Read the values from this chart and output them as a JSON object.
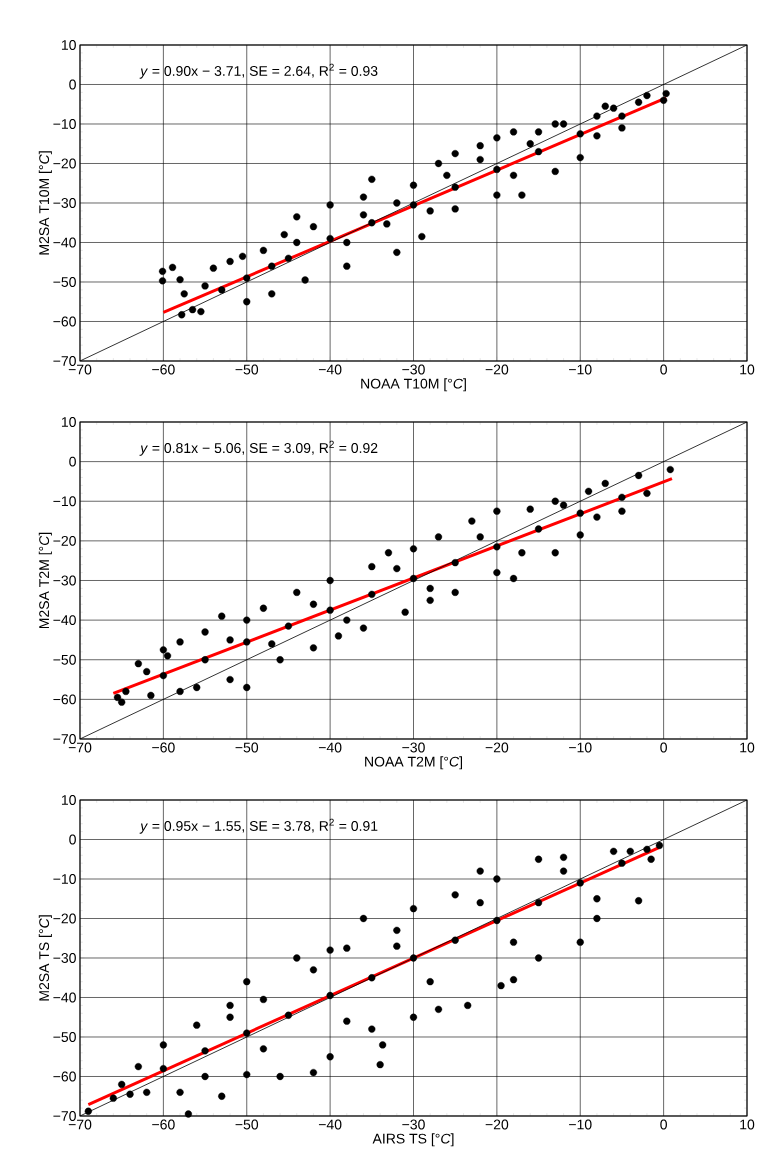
{
  "chart_data": [
    {
      "type": "scatter",
      "xlabel": "NOAA T10M [°*C*]",
      "ylabel": "M2SA T10M [°*C*]",
      "annotations": [
        "*y* = 0.90x − 3.71, SE =  2.64, R$^{2}$ =  0.93"
      ],
      "grid": true,
      "xlim": [
        -70,
        10
      ],
      "ylim": [
        -70,
        10
      ],
      "xticks": [
        {
          "value": -70,
          "label": "−70"
        },
        {
          "value": -60,
          "label": "−60"
        },
        {
          "value": -50,
          "label": "−50"
        },
        {
          "value": -40,
          "label": "−40"
        },
        {
          "value": -30,
          "label": "−30"
        },
        {
          "value": -20,
          "label": "−20"
        },
        {
          "value": -10,
          "label": "−10"
        },
        0,
        10
      ],
      "yticks": [
        {
          "value": -70,
          "label": "−70"
        },
        {
          "value": -60,
          "label": "−60"
        },
        {
          "value": -50,
          "label": "−50"
        },
        {
          "value": -40,
          "label": "−40"
        },
        {
          "value": -30,
          "label": "−30"
        },
        {
          "value": -20,
          "label": "−20"
        },
        {
          "value": -10,
          "label": "−10"
        },
        0,
        10
      ],
      "series": [
        {
          "marker": "circle",
          "color": "#000000",
          "x": [
            -60.1,
            -60.1,
            -58.9,
            -58,
            -57.5,
            -57.8,
            -56.5,
            -55.5,
            -55,
            -54,
            -53,
            -52,
            -50,
            -50.5,
            -48,
            -47,
            -45.5,
            -44,
            -43,
            -40,
            -38,
            -36,
            -35,
            -33.2,
            -32,
            -30,
            -29,
            -27,
            -25,
            -25,
            -22,
            -20,
            -20,
            -18,
            -17,
            -15,
            -13,
            -13,
            -10,
            -8,
            -7,
            -5,
            -3,
            -2,
            0.3,
            0,
            -50,
            -45,
            -40,
            -35,
            -30,
            -25,
            -20,
            -15,
            -10,
            -5,
            -42,
            -38,
            -32,
            -28,
            -22,
            -18,
            -12,
            -8,
            -47,
            -44,
            -36,
            -26,
            -16,
            -6
          ],
          "values": [
            -47.3,
            -49.7,
            -46.3,
            -49.4,
            -53,
            -58.3,
            -57,
            -57.5,
            -51,
            -46.5,
            -52,
            -44.8,
            -55,
            -43.5,
            -42,
            -53,
            -38,
            -33.5,
            -49.5,
            -30.5,
            -46,
            -28.5,
            -24,
            -35.3,
            -42.5,
            -25.5,
            -38.5,
            -20,
            -17.5,
            -31.5,
            -15.5,
            -13.5,
            -28,
            -12,
            -28,
            -12,
            -10,
            -22,
            -18.5,
            -8,
            -5.5,
            -11,
            -4.5,
            -2.8,
            -2.3,
            -4,
            -49,
            -44,
            -39,
            -35,
            -30.5,
            -26,
            -21.5,
            -17,
            -12.5,
            -8,
            -36,
            -40,
            -30,
            -32,
            -19,
            -23,
            -10,
            -13,
            -46,
            -40,
            -33,
            -23,
            -15,
            -6
          ]
        },
        {
          "type": "line",
          "color": "#ff0000",
          "x": [
            -60,
            0.3
          ],
          "values": [
            -57.7,
            -3.4
          ]
        },
        {
          "type": "line",
          "color": "#000000",
          "x": [
            -70,
            10
          ],
          "values": [
            -70,
            10
          ]
        }
      ]
    },
    {
      "type": "scatter",
      "xlabel": "NOAA T2M [°*C*]",
      "ylabel": "M2SA T2M [°*C*]",
      "annotations": [
        "*y* = 0.81x − 5.06, SE =  3.09, R$^{2}$ =  0.92"
      ],
      "grid": true,
      "xlim": [
        -70,
        10
      ],
      "ylim": [
        -70,
        10
      ],
      "xticks": [
        {
          "value": -70,
          "label": "−70"
        },
        {
          "value": -60,
          "label": "−60"
        },
        {
          "value": -50,
          "label": "−50"
        },
        {
          "value": -40,
          "label": "−40"
        },
        {
          "value": -30,
          "label": "−30"
        },
        {
          "value": -20,
          "label": "−20"
        },
        {
          "value": -10,
          "label": "−10"
        },
        0,
        10
      ],
      "yticks": [
        {
          "value": -70,
          "label": "−70"
        },
        {
          "value": -60,
          "label": "−60"
        },
        {
          "value": -50,
          "label": "−50"
        },
        {
          "value": -40,
          "label": "−40"
        },
        {
          "value": -30,
          "label": "−30"
        },
        {
          "value": -20,
          "label": "−20"
        },
        {
          "value": -10,
          "label": "−10"
        },
        0,
        10
      ],
      "series": [
        {
          "marker": "circle",
          "color": "#000000",
          "x": [
            -65.5,
            -65,
            -64.5,
            -63,
            -62,
            -61.5,
            -60,
            -59.5,
            -58,
            -58,
            -56,
            -55,
            -53,
            -52,
            -50,
            -50,
            -48,
            -46,
            -44,
            -42,
            -40,
            -39,
            -36,
            -35,
            -33,
            -31,
            -30,
            -28,
            -27,
            -25,
            -23,
            -20,
            -20,
            -18,
            -16,
            -13,
            -13,
            -10,
            -9,
            -7,
            -5,
            -3,
            -2,
            0.8,
            -60,
            -55,
            -50,
            -45,
            -40,
            -35,
            -30,
            -25,
            -20,
            -15,
            -10,
            -5,
            -52,
            -47,
            -42,
            -38,
            -32,
            -28,
            -22,
            -17,
            -12,
            -8
          ],
          "values": [
            -59.5,
            -60.7,
            -58,
            -51,
            -53,
            -59,
            -47.5,
            -49,
            -45.5,
            -58,
            -57,
            -43,
            -39,
            -55,
            -57,
            -40,
            -37,
            -50,
            -33,
            -47,
            -30,
            -44,
            -42,
            -26.5,
            -23,
            -38,
            -22,
            -35,
            -19,
            -33,
            -15,
            -12.5,
            -28,
            -29.5,
            -12,
            -10,
            -23,
            -18.5,
            -7.5,
            -5.5,
            -12.5,
            -3.5,
            -8,
            -2,
            -54,
            -50,
            -45.5,
            -41.5,
            -37.5,
            -33.5,
            -29.5,
            -25.5,
            -21.5,
            -17,
            -13,
            -9,
            -45,
            -46,
            -36,
            -40,
            -27,
            -32,
            -19,
            -23,
            -11,
            -14
          ]
        },
        {
          "type": "line",
          "color": "#ff0000",
          "x": [
            -66,
            1
          ],
          "values": [
            -58.5,
            -4.3
          ]
        },
        {
          "type": "line",
          "color": "#000000",
          "x": [
            -70,
            10
          ],
          "values": [
            -70,
            10
          ]
        }
      ]
    },
    {
      "type": "scatter",
      "xlabel": "AIRS TS [°*C*]",
      "ylabel": "M2SA TS [°*C*]",
      "annotations": [
        "*y* = 0.95x − 1.55, SE =  3.78, R$^{2}$ =  0.91"
      ],
      "grid": true,
      "xlim": [
        -70,
        10
      ],
      "ylim": [
        -70,
        10
      ],
      "xticks": [
        {
          "value": -70,
          "label": "−70"
        },
        {
          "value": -60,
          "label": "−60"
        },
        {
          "value": -50,
          "label": "−50"
        },
        {
          "value": -40,
          "label": "−40"
        },
        {
          "value": -30,
          "label": "−30"
        },
        {
          "value": -20,
          "label": "−20"
        },
        {
          "value": -10,
          "label": "−10"
        },
        0,
        10
      ],
      "yticks": [
        {
          "value": -70,
          "label": "−70"
        },
        {
          "value": -60,
          "label": "−60"
        },
        {
          "value": -50,
          "label": "−50"
        },
        {
          "value": -40,
          "label": "−40"
        },
        {
          "value": -30,
          "label": "−30"
        },
        {
          "value": -20,
          "label": "−20"
        },
        {
          "value": -10,
          "label": "−10"
        },
        0,
        10
      ],
      "series": [
        {
          "marker": "circle",
          "color": "#000000",
          "x": [
            -69,
            -66,
            -65,
            -64,
            -63,
            -62,
            -60,
            -58,
            -57,
            -56,
            -55,
            -53,
            -52,
            -50,
            -50,
            -48,
            -46,
            -44,
            -42,
            -40,
            -40,
            -38,
            -36,
            -35,
            -34,
            -33.7,
            -32,
            -30,
            -30,
            -27,
            -25,
            -23.5,
            -22,
            -20,
            -19.5,
            -18,
            -15,
            -15,
            -12,
            -10,
            -8,
            -6,
            -4,
            -3,
            -2,
            -0.5,
            -1.5,
            -60,
            -55,
            -50,
            -45,
            -40,
            -35,
            -30,
            -25,
            -20,
            -15,
            -10,
            -5,
            -52,
            -48,
            -42,
            -38,
            -32,
            -28,
            -22,
            -18,
            -12,
            -8
          ],
          "values": [
            -68.8,
            -65.5,
            -62,
            -64.5,
            -57.5,
            -64,
            -52,
            -64,
            -69.5,
            -47,
            -60,
            -65,
            -42,
            -36,
            -59.5,
            -40.5,
            -60,
            -30,
            -59,
            -28,
            -55,
            -27.5,
            -20,
            -48,
            -57,
            -52,
            -23,
            -17.5,
            -45,
            -43,
            -14,
            -42,
            -8,
            -10,
            -37,
            -35.5,
            -5,
            -30,
            -4.5,
            -26,
            -20,
            -3,
            -3,
            -15.5,
            -2.5,
            -1.5,
            -5,
            -58,
            -53.5,
            -49,
            -44.5,
            -39.5,
            -35,
            -30,
            -25.5,
            -20.5,
            -16,
            -11,
            -6,
            -45,
            -53,
            -33,
            -46,
            -27,
            -36,
            -16,
            -26,
            -8,
            -15
          ]
        },
        {
          "type": "line",
          "color": "#ff0000",
          "x": [
            -69,
            -0.5
          ],
          "values": [
            -67.1,
            -2.0
          ]
        },
        {
          "type": "line",
          "color": "#000000",
          "x": [
            -70,
            10
          ],
          "values": [
            -70,
            10
          ]
        }
      ]
    }
  ]
}
